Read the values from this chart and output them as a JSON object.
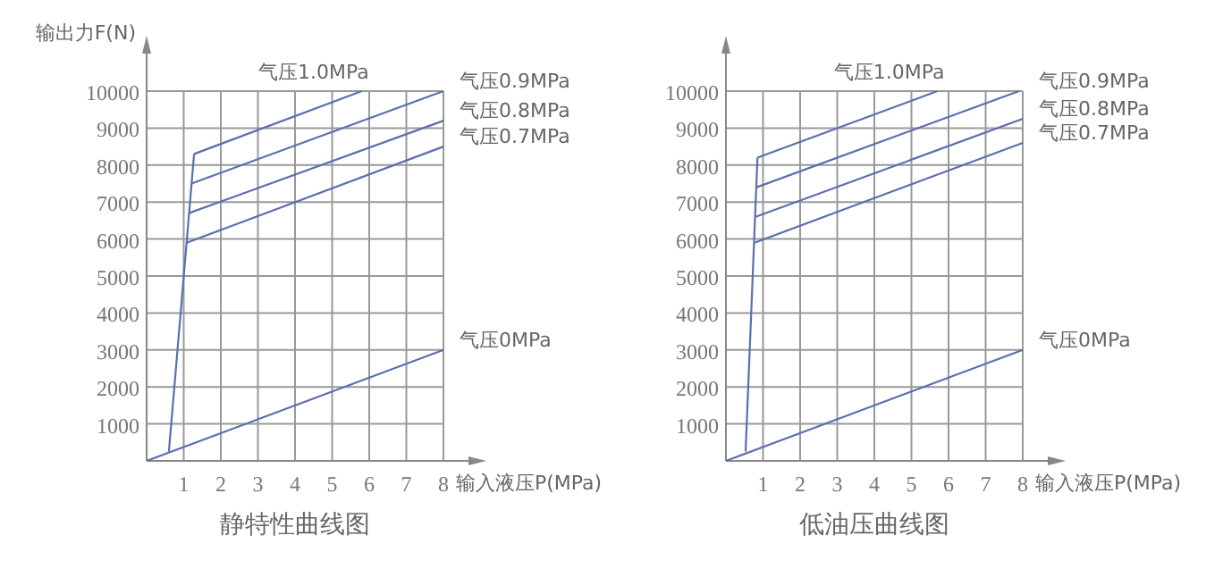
{
  "chart_data": [
    {
      "type": "line",
      "title": "静特性曲线图",
      "xlabel": "输入液压P(MPa)",
      "ylabel": "输出力F(N)",
      "xlim": [
        0,
        8
      ],
      "ylim": [
        0,
        10000
      ],
      "xticks": [
        1,
        2,
        3,
        4,
        5,
        6,
        7,
        8
      ],
      "yticks": [
        1000,
        2000,
        3000,
        4000,
        5000,
        6000,
        7000,
        8000,
        9000,
        10000
      ],
      "grid": true,
      "marker": "none",
      "line_style": "solid",
      "series": [
        {
          "name": "气压0MPa",
          "color": "#5b6fae",
          "x": [
            0,
            8
          ],
          "values": [
            0,
            3000
          ]
        },
        {
          "color": "#5b6fae",
          "x": [
            0.6,
            1.28
          ],
          "values": [
            250,
            8300
          ]
        },
        {
          "name": "气压1.0MPa",
          "color": "#5b6fae",
          "x": [
            1.28,
            5.8
          ],
          "values": [
            8300,
            10000
          ]
        },
        {
          "name": "气压0.9MPa",
          "color": "#5b6fae",
          "x": [
            1.21,
            8
          ],
          "values": [
            7500,
            10000
          ]
        },
        {
          "name": "气压0.8MPa",
          "color": "#5b6fae",
          "x": [
            1.14,
            8
          ],
          "values": [
            6700,
            9200
          ]
        },
        {
          "name": "气压0.7MPa",
          "color": "#5b6fae",
          "x": [
            1.08,
            8
          ],
          "values": [
            5900,
            8500
          ]
        }
      ]
    },
    {
      "type": "line",
      "title": "低油压曲线图",
      "xlabel": "输入液压P(MPa)",
      "xlim": [
        0,
        8
      ],
      "ylim": [
        0,
        10000
      ],
      "xticks": [
        1,
        2,
        3,
        4,
        5,
        6,
        7,
        8
      ],
      "yticks": [
        1000,
        2000,
        3000,
        4000,
        5000,
        6000,
        7000,
        8000,
        9000,
        10000
      ],
      "grid": true,
      "marker": "none",
      "line_style": "solid",
      "series": [
        {
          "name": "气压0MPa",
          "color": "#5b6fae",
          "x": [
            0,
            8
          ],
          "values": [
            0,
            3000
          ]
        },
        {
          "color": "#5b6fae",
          "x": [
            0.53,
            0.85
          ],
          "values": [
            250,
            8200
          ]
        },
        {
          "name": "气压1.0MPa",
          "color": "#5b6fae",
          "x": [
            0.85,
            5.7
          ],
          "values": [
            8200,
            10000
          ]
        },
        {
          "name": "气压0.9MPa",
          "color": "#5b6fae",
          "x": [
            0.83,
            7.9
          ],
          "values": [
            7400,
            10000
          ]
        },
        {
          "name": "气压0.8MPa",
          "color": "#5b6fae",
          "x": [
            0.8,
            8
          ],
          "values": [
            6600,
            9250
          ]
        },
        {
          "name": "气压0.7MPa",
          "color": "#5b6fae",
          "x": [
            0.77,
            8
          ],
          "values": [
            5900,
            8600
          ]
        }
      ]
    }
  ]
}
